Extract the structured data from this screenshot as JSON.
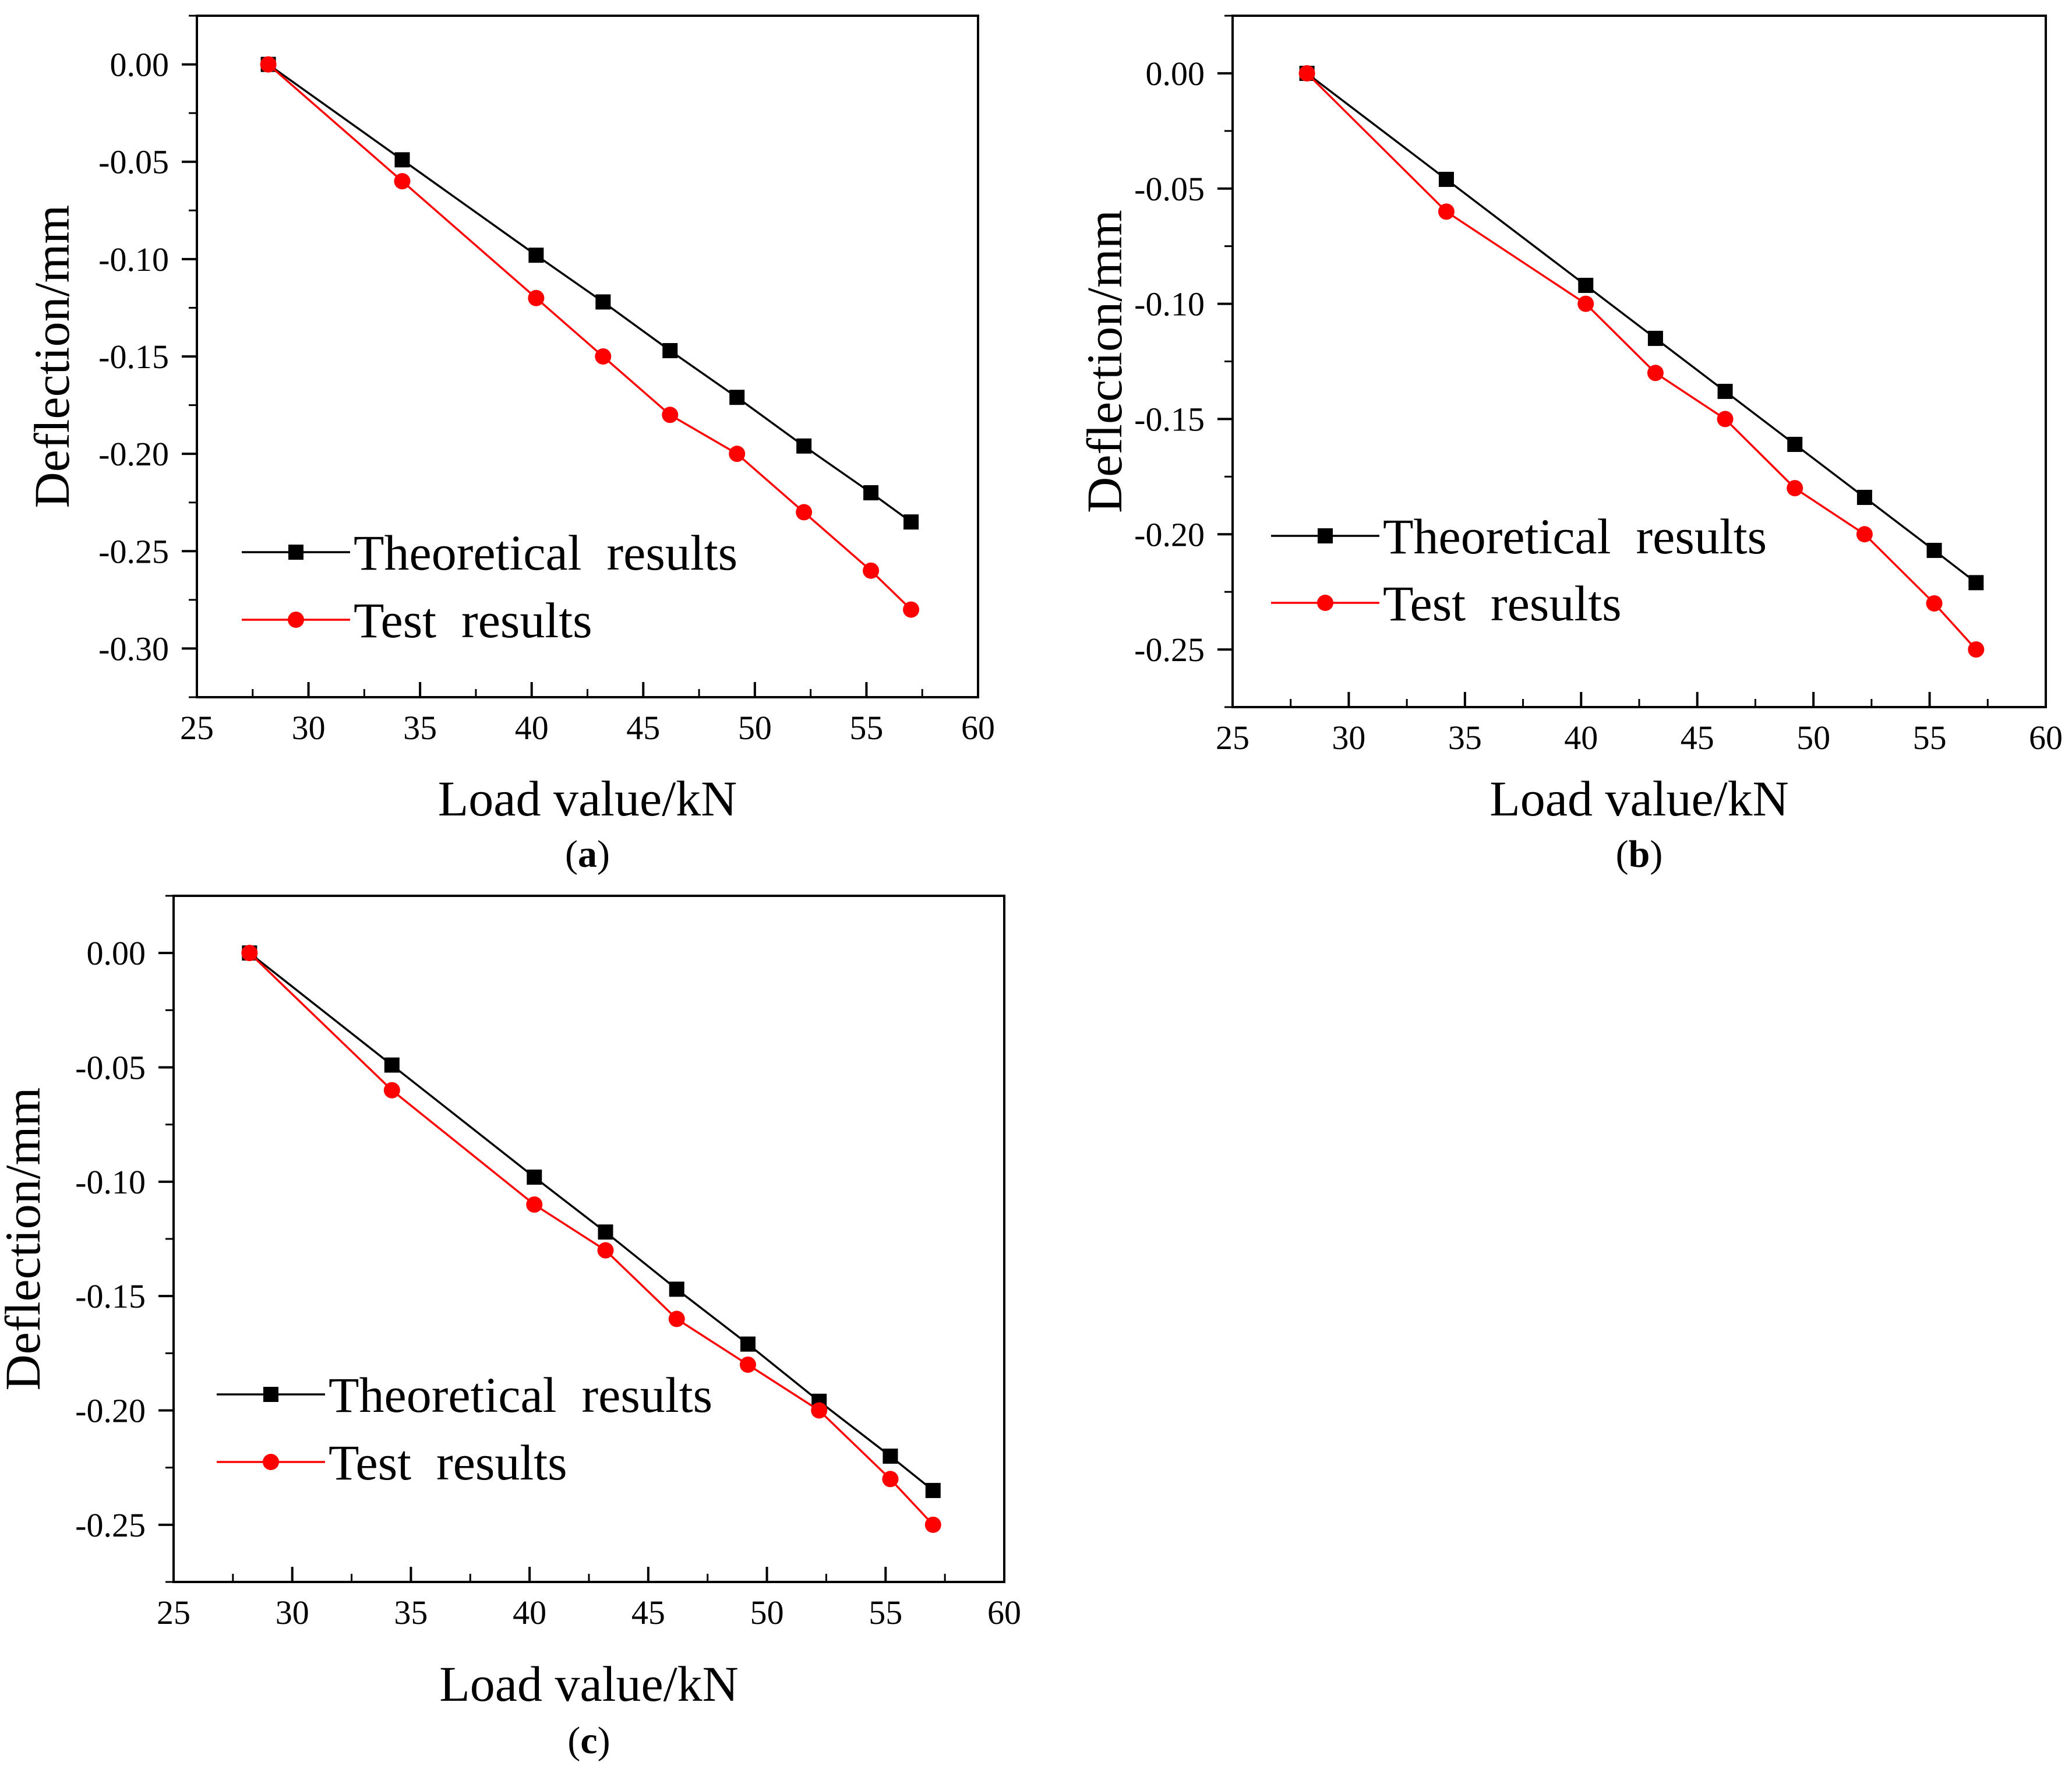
{
  "colors": {
    "theoretical": "#000000",
    "test": "#ff0000",
    "axis": "#000000",
    "background": "#ffffff"
  },
  "chart_data": [
    {
      "type": "line",
      "panel": "a",
      "panel_label": "a",
      "xlabel": "Load value/kN",
      "ylabel": "Deflection/mm",
      "xlim": [
        25,
        60
      ],
      "ylim": [
        -0.325,
        0.025
      ],
      "xticks": [
        25,
        30,
        35,
        40,
        45,
        50,
        55,
        60
      ],
      "xtick_labels": [
        "25",
        "30",
        "35",
        "40",
        "45",
        "50",
        "55",
        "60"
      ],
      "yticks": [
        0.0,
        -0.05,
        -0.1,
        -0.15,
        -0.2,
        -0.25,
        -0.3
      ],
      "ytick_labels": [
        "0.00",
        "-0.05",
        "-0.10",
        "-0.15",
        "-0.20",
        "-0.25",
        "-0.30"
      ],
      "legend_position": "lower-left",
      "series": [
        {
          "name": "Theoretical  results",
          "marker": "square",
          "x": [
            28.2,
            34.2,
            40.2,
            43.2,
            46.2,
            49.2,
            52.2,
            55.2,
            57.0
          ],
          "y": [
            0.0,
            -0.049,
            -0.098,
            -0.122,
            -0.147,
            -0.171,
            -0.196,
            -0.22,
            -0.235
          ]
        },
        {
          "name": "Test  results",
          "marker": "circle",
          "x": [
            28.2,
            34.2,
            40.2,
            43.2,
            46.2,
            49.2,
            52.2,
            55.2,
            57.0
          ],
          "y": [
            0.0,
            -0.06,
            -0.12,
            -0.15,
            -0.18,
            -0.2,
            -0.23,
            -0.26,
            -0.28
          ]
        }
      ]
    },
    {
      "type": "line",
      "panel": "b",
      "panel_label": "b",
      "xlabel": "Load value/kN",
      "ylabel": "Deflection/mm",
      "xlim": [
        25,
        60
      ],
      "ylim": [
        -0.275,
        0.025
      ],
      "xticks": [
        25,
        30,
        35,
        40,
        45,
        50,
        55,
        60
      ],
      "xtick_labels": [
        "25",
        "30",
        "35",
        "40",
        "45",
        "50",
        "55",
        "60"
      ],
      "yticks": [
        0.0,
        -0.05,
        -0.1,
        -0.15,
        -0.2,
        -0.25
      ],
      "ytick_labels": [
        "0.00",
        "-0.05",
        "-0.10",
        "-0.15",
        "-0.20",
        "-0.25"
      ],
      "legend_position": "lower-left",
      "series": [
        {
          "name": "Theoretical  results",
          "marker": "square",
          "x": [
            28.2,
            34.2,
            40.2,
            43.2,
            46.2,
            49.2,
            52.2,
            55.2,
            57.0
          ],
          "y": [
            0.0,
            -0.046,
            -0.092,
            -0.115,
            -0.138,
            -0.161,
            -0.184,
            -0.207,
            -0.221
          ]
        },
        {
          "name": "Test  results",
          "marker": "circle",
          "x": [
            28.2,
            34.2,
            40.2,
            43.2,
            46.2,
            49.2,
            52.2,
            55.2,
            57.0
          ],
          "y": [
            0.0,
            -0.06,
            -0.1,
            -0.13,
            -0.15,
            -0.18,
            -0.2,
            -0.23,
            -0.25
          ]
        }
      ]
    },
    {
      "type": "line",
      "panel": "c",
      "panel_label": "c",
      "xlabel": "Load value/kN",
      "ylabel": "Deflection/mm",
      "xlim": [
        25,
        60
      ],
      "ylim": [
        -0.275,
        0.025
      ],
      "xticks": [
        25,
        30,
        35,
        40,
        45,
        50,
        55,
        60
      ],
      "xtick_labels": [
        "25",
        "30",
        "35",
        "40",
        "45",
        "50",
        "55",
        "60"
      ],
      "yticks": [
        0.0,
        -0.05,
        -0.1,
        -0.15,
        -0.2,
        -0.25
      ],
      "ytick_labels": [
        "0.00",
        "-0.05",
        "-0.10",
        "-0.15",
        "-0.20",
        "-0.25"
      ],
      "legend_position": "lower-left",
      "series": [
        {
          "name": "Theoretical  results",
          "marker": "square",
          "x": [
            28.2,
            34.2,
            40.2,
            43.2,
            46.2,
            49.2,
            52.2,
            55.2,
            57.0
          ],
          "y": [
            0.0,
            -0.049,
            -0.098,
            -0.122,
            -0.147,
            -0.171,
            -0.196,
            -0.22,
            -0.235
          ]
        },
        {
          "name": "Test  results",
          "marker": "circle",
          "x": [
            28.2,
            34.2,
            40.2,
            43.2,
            46.2,
            49.2,
            52.2,
            55.2,
            57.0
          ],
          "y": [
            0.0,
            -0.06,
            -0.11,
            -0.13,
            -0.16,
            -0.18,
            -0.2,
            -0.23,
            -0.25
          ]
        }
      ]
    }
  ]
}
